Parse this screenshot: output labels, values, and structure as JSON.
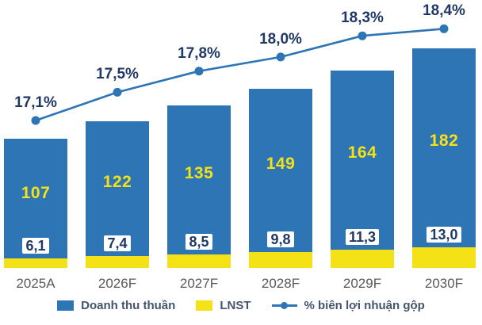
{
  "chart_data": {
    "type": "bar",
    "subtype": "bar-line-combo",
    "title": "",
    "xlabel": "",
    "ylabel": "",
    "grid": false,
    "legend_position": "bottom",
    "categories": [
      "2025A",
      "2026F",
      "2027F",
      "2028F",
      "2029F",
      "2030F"
    ],
    "series": [
      {
        "name": "Doanh thu thuần",
        "type": "bar",
        "color": "#2e75b6",
        "values": [
          107,
          122,
          135,
          149,
          164,
          182
        ]
      },
      {
        "name": "LNST",
        "type": "bar",
        "color": "#f5e216",
        "values": [
          6.1,
          7.4,
          8.5,
          9.8,
          11.3,
          13.0
        ]
      },
      {
        "name": "% biên lợi nhuận gộp",
        "type": "line",
        "color": "#2e75b6",
        "unit": "%",
        "values": [
          17.1,
          17.5,
          17.8,
          18.0,
          18.3,
          18.4
        ]
      }
    ],
    "value_labels": {
      "revenue": [
        "107",
        "122",
        "135",
        "149",
        "164",
        "182"
      ],
      "lnst": [
        "6,1",
        "7,4",
        "8,5",
        "9,8",
        "11,3",
        "13,0"
      ],
      "margin": [
        "17,1%",
        "17,5%",
        "17,8%",
        "18,0%",
        "18,3%",
        "18,4%"
      ]
    },
    "colors": {
      "revenue_bar": "#2e75b6",
      "lnst_bar": "#f5e216",
      "line": "#2e75b6",
      "dark_label": "#1f3864",
      "axis_text": "#595959",
      "legend_text": "#44546a",
      "background": "#ffffff"
    }
  }
}
